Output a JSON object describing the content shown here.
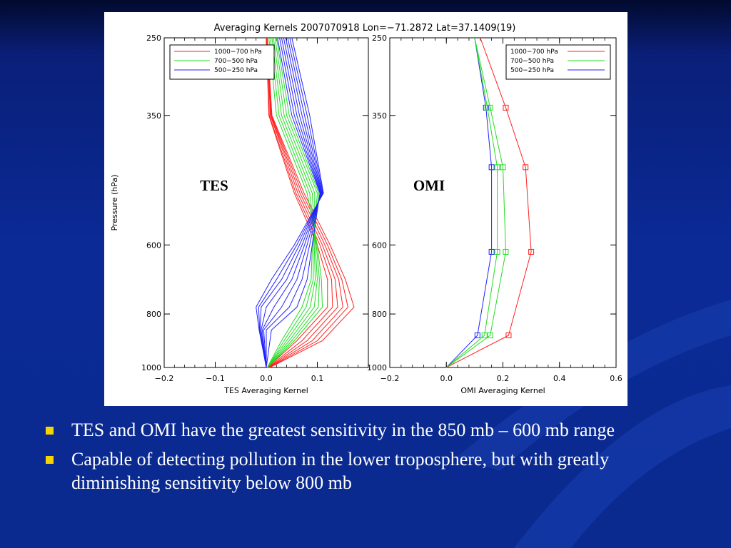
{
  "slide": {
    "bullets": [
      "TES and OMI have the greatest sensitivity in the 850 mb – 600 mb range",
      "Capable of detecting pollution in the lower troposphere, but with greatly diminishing sensitivity below 800 mb"
    ],
    "colors": {
      "background": "#0b2a96",
      "bullet": "#f7d400",
      "text": "#ffffff"
    }
  },
  "chart_data": [
    {
      "type": "line",
      "title": "Averaging Kernels 2007070918 Lon=−71.2872 Lat=37.1409(19)",
      "panel_label": "TES",
      "xlabel": "TES Averaging Kernel",
      "ylabel": "Pressure (hPa)",
      "xlim": [
        -0.2,
        0.2
      ],
      "ylim": [
        1000,
        250
      ],
      "x_ticks": [
        "−0.2",
        "−0.1",
        "0.0",
        "0.1"
      ],
      "y_ticks": [
        "250",
        "350",
        "600",
        "800",
        "1000"
      ],
      "y_tick_values": [
        250,
        350,
        600,
        800,
        1000
      ],
      "x_tick_values": [
        -0.2,
        -0.1,
        0.0,
        0.1
      ],
      "legend": {
        "position": "top-left",
        "entries": [
          {
            "label": "1000−700 hPa",
            "color": "#ff2020"
          },
          {
            "label": "700−500 hPa",
            "color": "#22dd22"
          },
          {
            "label": "500−250 hPa",
            "color": "#2222ff"
          }
        ]
      },
      "series": [
        {
          "name": "1000−700 hPa",
          "color": "#ff2020",
          "pressure": [
            250,
            350,
            500,
            600,
            700,
            780,
            900,
            1000
          ],
          "lines": [
            [
              0.0,
              0.005,
              0.055,
              0.1,
              0.12,
              0.12,
              0.06,
              0.002
            ],
            [
              0.0,
              0.006,
              0.058,
              0.105,
              0.128,
              0.13,
              0.07,
              0.003
            ],
            [
              0.001,
              0.008,
              0.062,
              0.11,
              0.135,
              0.14,
              0.08,
              0.004
            ],
            [
              0.001,
              0.009,
              0.066,
              0.115,
              0.142,
              0.15,
              0.09,
              0.005
            ],
            [
              0.002,
              0.01,
              0.07,
              0.12,
              0.148,
              0.16,
              0.1,
              0.006
            ],
            [
              0.002,
              0.011,
              0.074,
              0.125,
              0.155,
              0.172,
              0.11,
              0.007
            ]
          ]
        },
        {
          "name": "700−500 hPa",
          "color": "#22dd22",
          "pressure": [
            250,
            350,
            500,
            600,
            700,
            780,
            900,
            1000
          ],
          "lines": [
            [
              0.005,
              0.02,
              0.08,
              0.1,
              0.108,
              0.11,
              0.055,
              0.002
            ],
            [
              0.008,
              0.025,
              0.085,
              0.098,
              0.104,
              0.102,
              0.05,
              0.002
            ],
            [
              0.011,
              0.03,
              0.09,
              0.096,
              0.1,
              0.094,
              0.045,
              0.002
            ],
            [
              0.014,
              0.035,
              0.095,
              0.094,
              0.096,
              0.086,
              0.04,
              0.002
            ],
            [
              0.017,
              0.04,
              0.1,
              0.092,
              0.092,
              0.078,
              0.035,
              0.002
            ],
            [
              0.02,
              0.045,
              0.103,
              0.09,
              0.088,
              0.07,
              0.03,
              0.002
            ]
          ]
        },
        {
          "name": "500−250 hPa",
          "color": "#2222ff",
          "pressure": [
            250,
            350,
            500,
            600,
            700,
            780,
            860,
            1000
          ],
          "lines": [
            [
              0.022,
              0.05,
              0.105,
              0.09,
              0.08,
              0.06,
              0.01,
              0.0
            ],
            [
              0.026,
              0.055,
              0.106,
              0.085,
              0.07,
              0.045,
              0.0,
              0.0
            ],
            [
              0.03,
              0.06,
              0.107,
              0.08,
              0.06,
              0.03,
              -0.005,
              0.0
            ],
            [
              0.034,
              0.065,
              0.108,
              0.075,
              0.05,
              0.015,
              -0.008,
              0.0
            ],
            [
              0.038,
              0.07,
              0.109,
              0.07,
              0.04,
              0.0,
              -0.01,
              0.0
            ],
            [
              0.042,
              0.075,
              0.11,
              0.065,
              0.03,
              -0.01,
              -0.012,
              0.0
            ],
            [
              0.046,
              0.08,
              0.111,
              0.06,
              0.02,
              -0.015,
              -0.013,
              0.0
            ],
            [
              0.05,
              0.085,
              0.112,
              0.055,
              0.01,
              -0.02,
              -0.014,
              0.0
            ]
          ]
        }
      ]
    },
    {
      "type": "line",
      "panel_label": "OMI",
      "xlabel": "OMI Averaging Kernel",
      "xlim": [
        -0.2,
        0.6
      ],
      "ylim": [
        1000,
        250
      ],
      "x_ticks": [
        "−0.2",
        "0.0",
        "0.2",
        "0.4",
        "0.6"
      ],
      "x_tick_values": [
        -0.2,
        0.0,
        0.2,
        0.4,
        0.6
      ],
      "y_ticks": [
        "250",
        "350",
        "600",
        "800",
        "1000"
      ],
      "y_tick_values": [
        250,
        350,
        600,
        800,
        1000
      ],
      "legend": {
        "position": "top-right",
        "entries": [
          {
            "label": "1000−700 hPa",
            "color": "#ff2020"
          },
          {
            "label": "700−500 hPa",
            "color": "#22dd22"
          },
          {
            "label": "500−250 hPa",
            "color": "#2222ff"
          }
        ]
      },
      "series": [
        {
          "name": "1000−700 hPa",
          "color": "#ff2020",
          "pressure": [
            250,
            340,
            450,
            620,
            880,
            1000
          ],
          "x": [
            0.12,
            0.21,
            0.28,
            0.3,
            0.22,
            0.0
          ],
          "markers": [
            false,
            true,
            true,
            true,
            true,
            false
          ]
        },
        {
          "name": "700−500 hPa",
          "color": "#22dd22",
          "pressure": [
            250,
            340,
            450,
            620,
            880,
            1000
          ],
          "x": [
            0.1,
            0.155,
            0.2,
            0.21,
            0.155,
            0.0
          ],
          "markers": [
            false,
            true,
            true,
            true,
            true,
            false
          ]
        },
        {
          "name": "500−250 hPa",
          "color": "#2222ff",
          "pressure": [
            250,
            340,
            450,
            620,
            880,
            1000
          ],
          "x": [
            0.1,
            0.14,
            0.16,
            0.16,
            0.11,
            0.0
          ],
          "markers": [
            false,
            true,
            true,
            true,
            true,
            false
          ]
        },
        {
          "name": "",
          "color": "#22dd22",
          "pressure": [
            250,
            340,
            450,
            620,
            880,
            1000
          ],
          "x": [
            0.1,
            0.145,
            0.18,
            0.18,
            0.135,
            0.0
          ],
          "markers": [
            false,
            true,
            true,
            true,
            true,
            false
          ]
        }
      ]
    }
  ]
}
